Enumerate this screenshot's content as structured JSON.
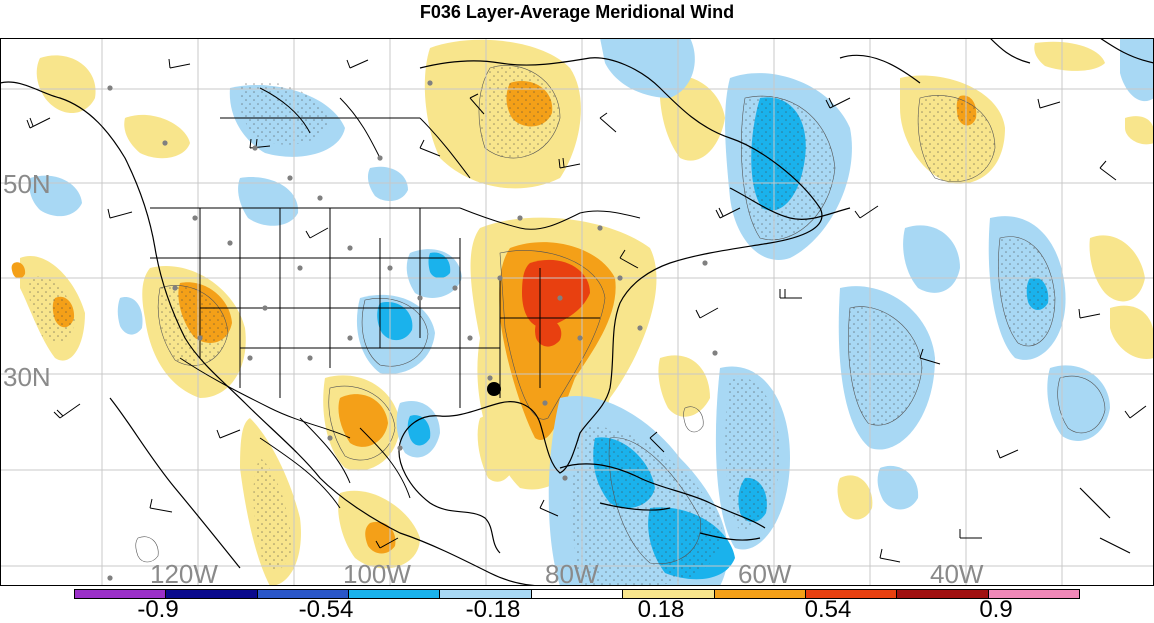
{
  "title": "F036 Layer-Average Meridional Wind",
  "lat_labels": [
    "50N",
    "30N"
  ],
  "lon_labels": [
    "120W",
    "100W",
    "80W",
    "60W",
    "40W"
  ],
  "colorbar": {
    "colors": [
      "#9b30c8",
      "#0a0a8c",
      "#2a56c8",
      "#1ab2ec",
      "#a8d8f4",
      "#ffffff",
      "#f8e58c",
      "#f4a018",
      "#e84010",
      "#a01010",
      "#f088b8"
    ],
    "tick_labels": [
      "-0.9",
      "-0.54",
      "-0.18",
      "0.18",
      "0.54",
      "0.9"
    ]
  },
  "map_colors": {
    "light_blue": "#a8d8f4",
    "mid_blue": "#1ab2ec",
    "light_yellow": "#f8e58c",
    "orange": "#f4a018",
    "red_orange": "#e84010"
  }
}
